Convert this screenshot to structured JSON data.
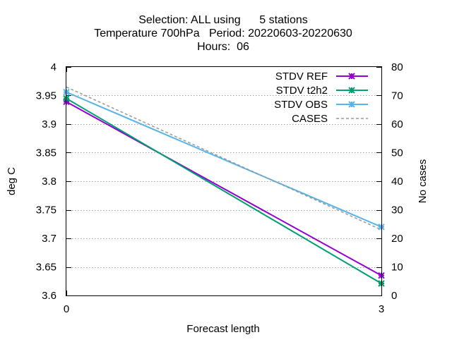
{
  "chart_data": {
    "type": "line",
    "title_lines": [
      "Selection: ALL using      5 stations",
      "Temperature 700hPa   Period: 20220603-20220630",
      "Hours:  06"
    ],
    "xlabel": "Forecast length",
    "ylabel": "deg C",
    "y2label": "No cases",
    "x": [
      0,
      3
    ],
    "x_ticks": [
      0,
      3
    ],
    "xlim": [
      0,
      3
    ],
    "ylim": [
      3.6,
      4.0
    ],
    "y_ticks": [
      3.6,
      3.65,
      3.7,
      3.75,
      3.8,
      3.85,
      3.9,
      3.95,
      4.0
    ],
    "y_tick_labels": [
      "3.6",
      "3.65",
      "3.7",
      "3.75",
      "3.8",
      "3.85",
      "3.9",
      "3.95",
      "4"
    ],
    "y2lim": [
      0,
      80
    ],
    "y2_ticks": [
      0,
      10,
      20,
      30,
      40,
      50,
      60,
      70,
      80
    ],
    "grid": true,
    "legend_position": "top-right",
    "series": [
      {
        "name": "STDV REF",
        "axis": "y",
        "values": [
          3.939,
          3.635
        ],
        "color": "#9400d3",
        "style": "solid",
        "marker": "star"
      },
      {
        "name": "STDV t2h2",
        "axis": "y",
        "values": [
          3.945,
          3.621
        ],
        "color": "#009e73",
        "style": "solid",
        "marker": "star"
      },
      {
        "name": "STDV OBS",
        "axis": "y",
        "values": [
          3.956,
          3.72
        ],
        "color": "#56b4e9",
        "style": "solid",
        "marker": "star"
      },
      {
        "name": "CASES",
        "axis": "y2",
        "values": [
          73,
          23
        ],
        "color": "#999999",
        "style": "dashed",
        "marker": "none"
      }
    ]
  }
}
